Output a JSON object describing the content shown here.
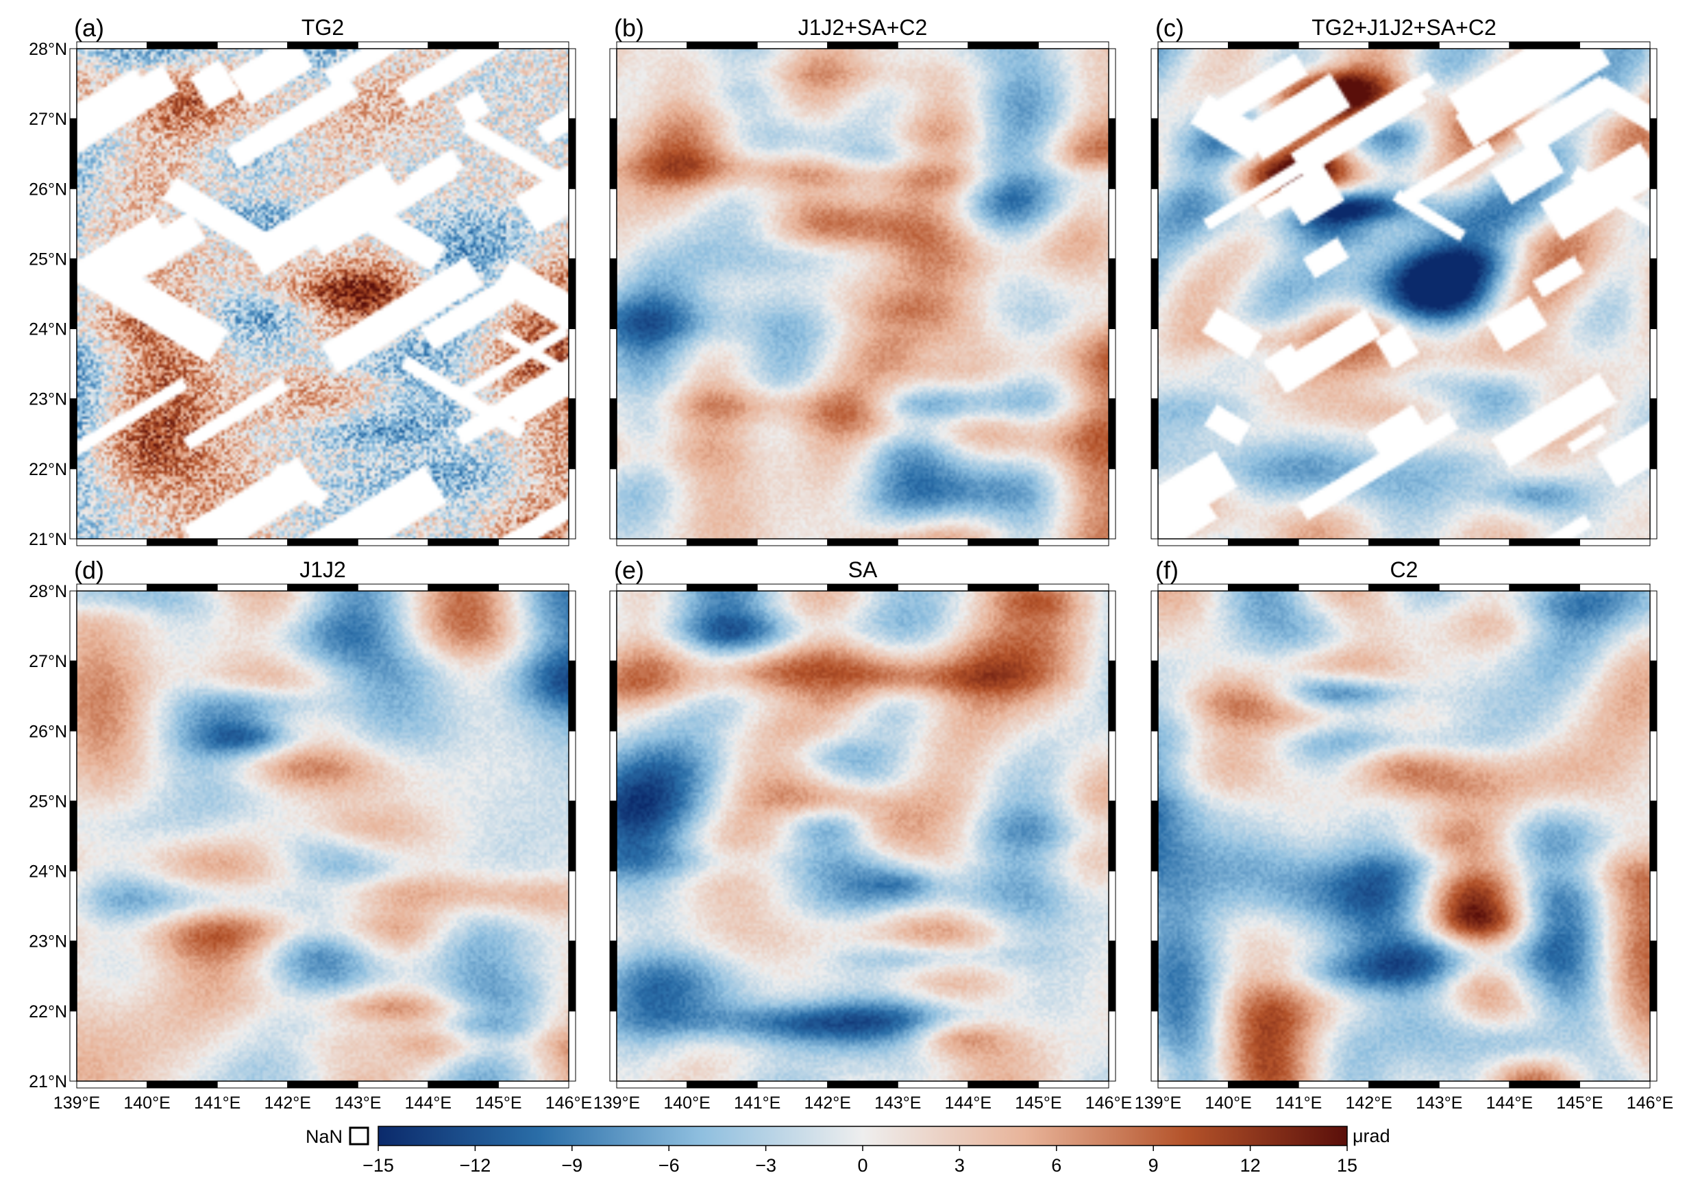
{
  "chart_data": {
    "type": "heatmap",
    "panels": [
      {
        "label": "(a)",
        "title": "TG2",
        "kind": "noisy",
        "seed": 11,
        "gaps": "dense",
        "show_ylabels": true,
        "show_xlabels": false
      },
      {
        "label": "(b)",
        "title": "J1J2+SA+C2",
        "kind": "smooth",
        "seed": 21,
        "gaps": "none",
        "show_ylabels": false,
        "show_xlabels": false
      },
      {
        "label": "(c)",
        "title": "TG2+J1J2+SA+C2",
        "kind": "smooth",
        "seed": 31,
        "gaps": "dense",
        "show_ylabels": false,
        "show_xlabels": false
      },
      {
        "label": "(d)",
        "title": "J1J2",
        "kind": "smooth",
        "seed": 41,
        "gaps": "none",
        "show_ylabels": true,
        "show_xlabels": true
      },
      {
        "label": "(e)",
        "title": "SA",
        "kind": "smooth",
        "seed": 51,
        "gaps": "none",
        "show_ylabels": false,
        "show_xlabels": true
      },
      {
        "label": "(f)",
        "title": "C2",
        "kind": "smooth",
        "seed": 61,
        "gaps": "none",
        "show_ylabels": false,
        "show_xlabels": true
      }
    ],
    "x_range": [
      139,
      146
    ],
    "y_range": [
      21,
      28
    ],
    "x_ticks": [
      "139°E",
      "140°E",
      "141°E",
      "142°E",
      "143°E",
      "144°E",
      "145°E",
      "146°E"
    ],
    "y_ticks": [
      "21°N",
      "22°N",
      "23°N",
      "24°N",
      "25°N",
      "26°N",
      "27°N",
      "28°N"
    ],
    "colorbar": {
      "min": -15,
      "max": 15,
      "ticks": [
        "−15",
        "−12",
        "−9",
        "−6",
        "−3",
        "0",
        "3",
        "6",
        "9",
        "12",
        "15"
      ],
      "unit": "μrad",
      "nan_label": "NaN",
      "colors": [
        "#0b2a6b",
        "#2a6ea8",
        "#8fbfdf",
        "#eeeeee",
        "#e8b49a",
        "#b4532a",
        "#5a0f0a"
      ]
    }
  }
}
